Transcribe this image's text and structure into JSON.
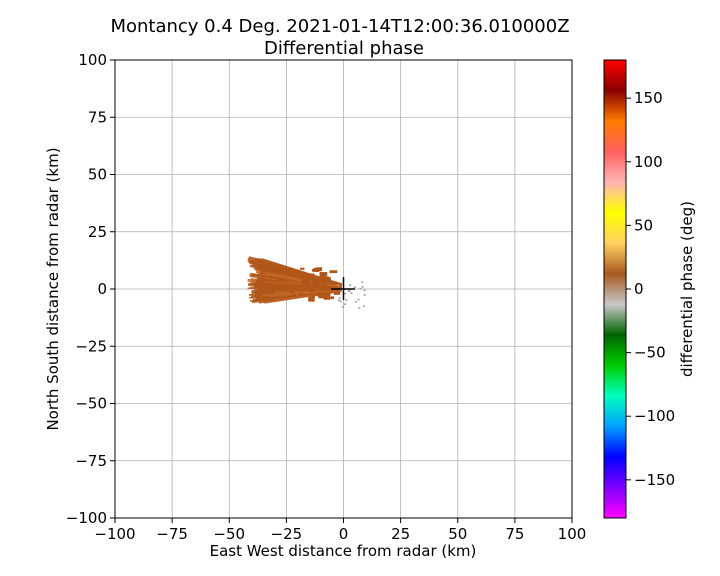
{
  "chart_data": {
    "type": "heatmap",
    "title": "Montancy 0.4 Deg. 2021-01-14T12:00:36.010000Z",
    "subtitle": "Differential phase",
    "xlabel": "East West distance from radar (km)",
    "ylabel": "North South distance from radar (km)",
    "xlim": [
      -100,
      100
    ],
    "ylim": [
      -100,
      100
    ],
    "xticks": [
      "−100",
      "−75",
      "−50",
      "−25",
      "0",
      "25",
      "50",
      "75",
      "100"
    ],
    "yticks": [
      "−100",
      "−75",
      "−50",
      "−25",
      "0",
      "25",
      "50",
      "75",
      "100"
    ],
    "xtick_values": [
      -100,
      -75,
      -50,
      -25,
      0,
      25,
      50,
      75,
      100
    ],
    "ytick_values": [
      -100,
      -75,
      -50,
      -25,
      0,
      25,
      50,
      75,
      100
    ],
    "grid": true,
    "radar_location": [
      0,
      0
    ],
    "colorbar": {
      "label": "differential phase (deg)",
      "range": [
        -180,
        180
      ],
      "ticks": [
        "−150",
        "−100",
        "−50",
        "0",
        "50",
        "100",
        "150"
      ],
      "tick_values": [
        -150,
        -100,
        -50,
        0,
        50,
        100,
        150
      ],
      "colors": [
        "#ff00ff",
        "#8000ff",
        "#0000ff",
        "#00a0ff",
        "#00ffc0",
        "#00cc00",
        "#006400",
        "#c8c8c8",
        "#a85a20",
        "#ffd060",
        "#ffff00",
        "#ffb4b4",
        "#ff6060",
        "#ff7a00",
        "#8b0000",
        "#ff0000"
      ]
    },
    "echo_color": "#b0561a",
    "echo_region": {
      "x_range": [
        -42,
        0
      ],
      "y_range": [
        -6,
        14
      ],
      "value_deg": 20
    }
  }
}
